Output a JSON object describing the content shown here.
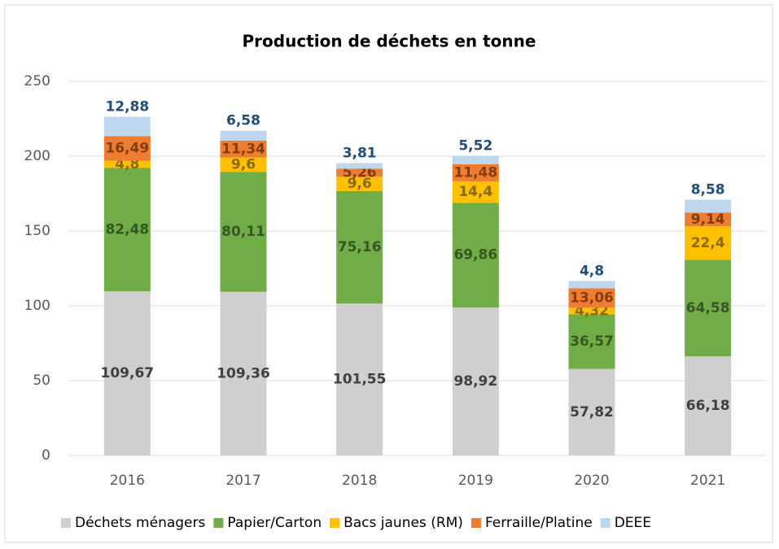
{
  "chart_data": {
    "type": "stacked_bar",
    "title": "Production de déchets en tonne",
    "categories": [
      "2016",
      "2017",
      "2018",
      "2019",
      "2020",
      "2021"
    ],
    "series": [
      {
        "name": "Déchets ménagers",
        "color": "#d0cece",
        "label_color": "#404040",
        "values": [
          109.67,
          109.36,
          101.55,
          98.92,
          57.82,
          66.18
        ],
        "value_labels": [
          "109,67",
          "109,36",
          "101,55",
          "98,92",
          "57,82",
          "66,18"
        ]
      },
      {
        "name": "Papier/Carton",
        "color": "#70ad47",
        "label_color": "#375623",
        "values": [
          82.48,
          80.11,
          75.16,
          69.86,
          36.57,
          64.58
        ],
        "value_labels": [
          "82,48",
          "80,11",
          "75,16",
          "69,86",
          "36,57",
          "64,58"
        ]
      },
      {
        "name": "Bacs jaunes (RM)",
        "color": "#ffc000",
        "label_color": "#8a6a00",
        "values": [
          4.8,
          9.6,
          9.6,
          14.4,
          4.32,
          22.4
        ],
        "value_labels": [
          "4,8",
          "9,6",
          "9,6",
          "14,4",
          "4,32",
          "22,4"
        ]
      },
      {
        "name": "Ferraille/Platine",
        "color": "#ed7d31",
        "label_color": "#843c0c",
        "values": [
          16.49,
          11.34,
          5.26,
          11.48,
          13.06,
          9.14
        ],
        "value_labels": [
          "16,49",
          "11,34",
          "5,26",
          "11,48",
          "13,06",
          "9,14"
        ]
      },
      {
        "name": "DEEE",
        "color": "#bdd7ee",
        "label_color": "#1f4e79",
        "values": [
          12.88,
          6.58,
          3.81,
          5.52,
          4.8,
          8.58
        ],
        "value_labels": [
          "12,88",
          "6,58",
          "3,81",
          "5,52",
          "4,8",
          "8,58"
        ]
      }
    ],
    "ylim": [
      0,
      250
    ],
    "yticks": [
      0,
      50,
      100,
      150,
      200,
      250
    ],
    "grid": true,
    "legend": "bottom"
  }
}
